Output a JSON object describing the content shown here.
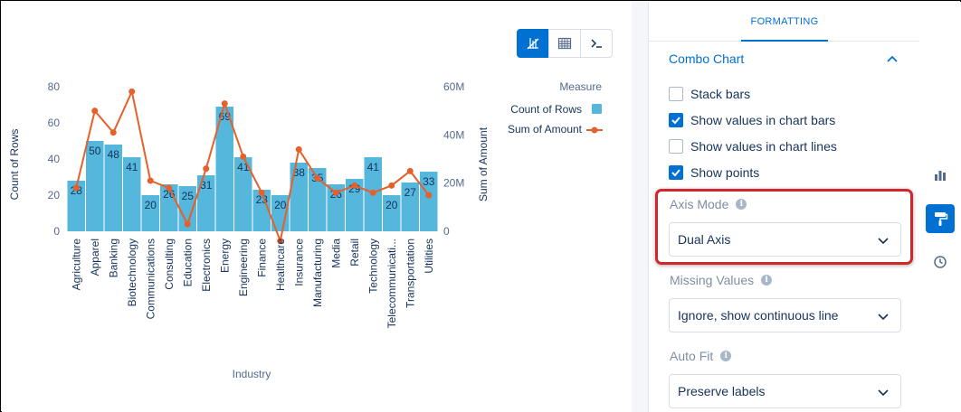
{
  "toolbar": {
    "buttons": [
      {
        "name": "chart-view-icon",
        "active": true
      },
      {
        "name": "table-view-icon",
        "active": false
      },
      {
        "name": "query-mode-icon",
        "active": false
      }
    ]
  },
  "chart_data": {
    "type": "bar",
    "categories": [
      "Agriculture",
      "Apparel",
      "Banking",
      "Biotechnology",
      "Communications",
      "Consulting",
      "Education",
      "Electronics",
      "Energy",
      "Engineering",
      "Finance",
      "Healthcare",
      "Insurance",
      "Manufacturing",
      "Media",
      "Retail",
      "Technology",
      "Telecommunicati...",
      "Transportation",
      "Utilities"
    ],
    "series": [
      {
        "name": "Count of Rows",
        "type": "bar",
        "axis": "left",
        "color": "#54b7db",
        "values": [
          28,
          50,
          48,
          41,
          20,
          26,
          25,
          31,
          69,
          41,
          23,
          20,
          38,
          35,
          26,
          29,
          41,
          20,
          27,
          33
        ],
        "labels": [
          "28",
          "50",
          "48",
          "41",
          "20",
          "26",
          "25",
          "31",
          "69",
          "41",
          "23",
          "20",
          "38",
          "35",
          "26",
          "29",
          "41",
          "20",
          "27",
          "33"
        ]
      },
      {
        "name": "Sum of Amount",
        "type": "line",
        "axis": "right",
        "color": "#e5602a",
        "values": [
          18,
          50,
          41,
          58,
          21,
          18,
          3,
          26,
          53,
          31,
          16,
          -4,
          34,
          22,
          16,
          19,
          16,
          19,
          25,
          15
        ]
      }
    ],
    "xlabel": "Industry",
    "ylabel_left": "Count of Rows",
    "ylabel_right": "Sum of Amount",
    "left_ticks": [
      "80",
      "60",
      "40",
      "20",
      "0"
    ],
    "right_ticks": [
      "60M",
      "40M",
      "20M",
      "0"
    ],
    "ylim_left": [
      0,
      80
    ],
    "ylim_right": [
      0,
      60
    ],
    "legend_title": "Measure",
    "legend_position": "top-right",
    "grid": false
  },
  "panel": {
    "tab_label": "FORMATTING",
    "section_title": "Combo Chart",
    "checkboxes": [
      {
        "label": "Stack bars",
        "checked": false
      },
      {
        "label": "Show values in chart bars",
        "checked": true
      },
      {
        "label": "Show values in chart lines",
        "checked": false
      },
      {
        "label": "Show points",
        "checked": true
      }
    ],
    "axis_mode": {
      "label": "Axis Mode",
      "value": "Dual Axis"
    },
    "missing_values": {
      "label": "Missing Values",
      "value": "Ignore, show continuous line"
    },
    "auto_fit": {
      "label": "Auto Fit",
      "value": "Preserve labels"
    }
  },
  "rail": {
    "buttons": [
      {
        "name": "chart-properties-icon",
        "active": false
      },
      {
        "name": "formatting-paintbrush-icon",
        "active": true
      },
      {
        "name": "history-clock-icon",
        "active": false
      }
    ]
  },
  "colors": {
    "accent": "#0070d2",
    "bar": "#54b7db",
    "line": "#e5602a",
    "highlight": "#d0262e"
  }
}
